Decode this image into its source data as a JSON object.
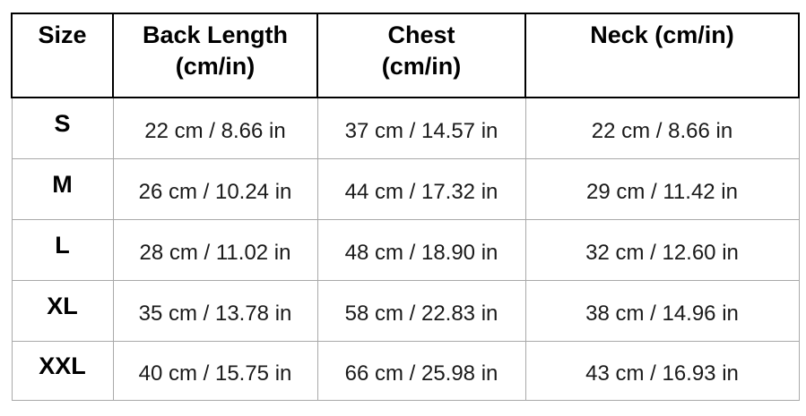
{
  "chart_data": {
    "type": "table",
    "columns": [
      {
        "label_lines": [
          "Size"
        ]
      },
      {
        "label_lines": [
          "Back Length",
          "(cm/in)"
        ]
      },
      {
        "label_lines": [
          "Chest",
          "(cm/in)"
        ]
      },
      {
        "label_lines": [
          "Neck (cm/in)"
        ]
      }
    ],
    "rows": [
      [
        "S",
        "22 cm / 8.66 in",
        "37 cm / 14.57 in",
        "22 cm / 8.66 in"
      ],
      [
        "M",
        "26 cm / 10.24 in",
        "44 cm / 17.32 in",
        "29 cm / 11.42 in"
      ],
      [
        "L",
        "28 cm / 11.02 in",
        "48 cm / 18.90 in",
        "32 cm / 12.60 in"
      ],
      [
        "XL",
        "35 cm / 13.78 in",
        "58 cm / 22.83 in",
        "38 cm / 14.96 in"
      ],
      [
        "XXL",
        "40 cm / 15.75 in",
        "66 cm / 25.98 in",
        "43 cm / 16.93 in"
      ]
    ]
  },
  "colors": {
    "text": "#000000",
    "header_border": "#000000",
    "grid_line": "#a9a9a9",
    "background": "#ffffff"
  }
}
